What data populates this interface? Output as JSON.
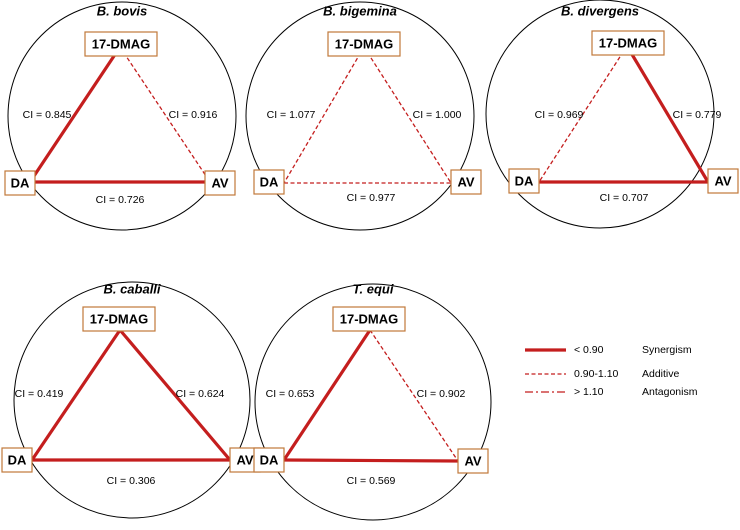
{
  "colors": {
    "edge": "#c41e1e",
    "node_border": "#c0783a"
  },
  "panels": [
    {
      "title": "B. bovis",
      "nodes": {
        "top": "17-DMAG",
        "left": "DA",
        "right": "AV"
      },
      "edges": {
        "left": {
          "label": "CI = 0.845",
          "type": "synergism"
        },
        "right": {
          "label": "CI = 0.916",
          "type": "additive"
        },
        "bottom": {
          "label": "CI = 0.726",
          "type": "synergism"
        }
      }
    },
    {
      "title": "B. bigemina",
      "nodes": {
        "top": "17-DMAG",
        "left": "DA",
        "right": "AV"
      },
      "edges": {
        "left": {
          "label": "CI = 1.077",
          "type": "additive"
        },
        "right": {
          "label": "CI = 1.000",
          "type": "additive"
        },
        "bottom": {
          "label": "CI = 0.977",
          "type": "additive"
        }
      }
    },
    {
      "title": "B. divergens",
      "nodes": {
        "top": "17-DMAG",
        "left": "DA",
        "right": "AV"
      },
      "edges": {
        "left": {
          "label": "CI = 0.969",
          "type": "additive"
        },
        "right": {
          "label": "CI = 0.779",
          "type": "synergism"
        },
        "bottom": {
          "label": "CI = 0.707",
          "type": "synergism"
        }
      }
    },
    {
      "title": "B. caballi",
      "nodes": {
        "top": "17-DMAG",
        "left": "DA",
        "right": "AV"
      },
      "edges": {
        "left": {
          "label": "CI = 0.419",
          "type": "synergism"
        },
        "right": {
          "label": "CI = 0.624",
          "type": "synergism"
        },
        "bottom": {
          "label": "CI = 0.306",
          "type": "synergism"
        }
      }
    },
    {
      "title": "T. equi",
      "nodes": {
        "top": "17-DMAG",
        "left": "DA",
        "right": "AV"
      },
      "edges": {
        "left": {
          "label": "CI = 0.653",
          "type": "synergism"
        },
        "right": {
          "label": "CI = 0.902",
          "type": "additive"
        },
        "bottom": {
          "label": "CI = 0.569",
          "type": "synergism"
        }
      }
    }
  ],
  "legend": [
    {
      "range": "< 0.90",
      "meaning": "Synergism",
      "type": "synergism"
    },
    {
      "range": "0.90-1.10",
      "meaning": "Additive",
      "type": "additive"
    },
    {
      "range": "> 1.10",
      "meaning": "Antagonism",
      "type": "antagonism"
    }
  ]
}
